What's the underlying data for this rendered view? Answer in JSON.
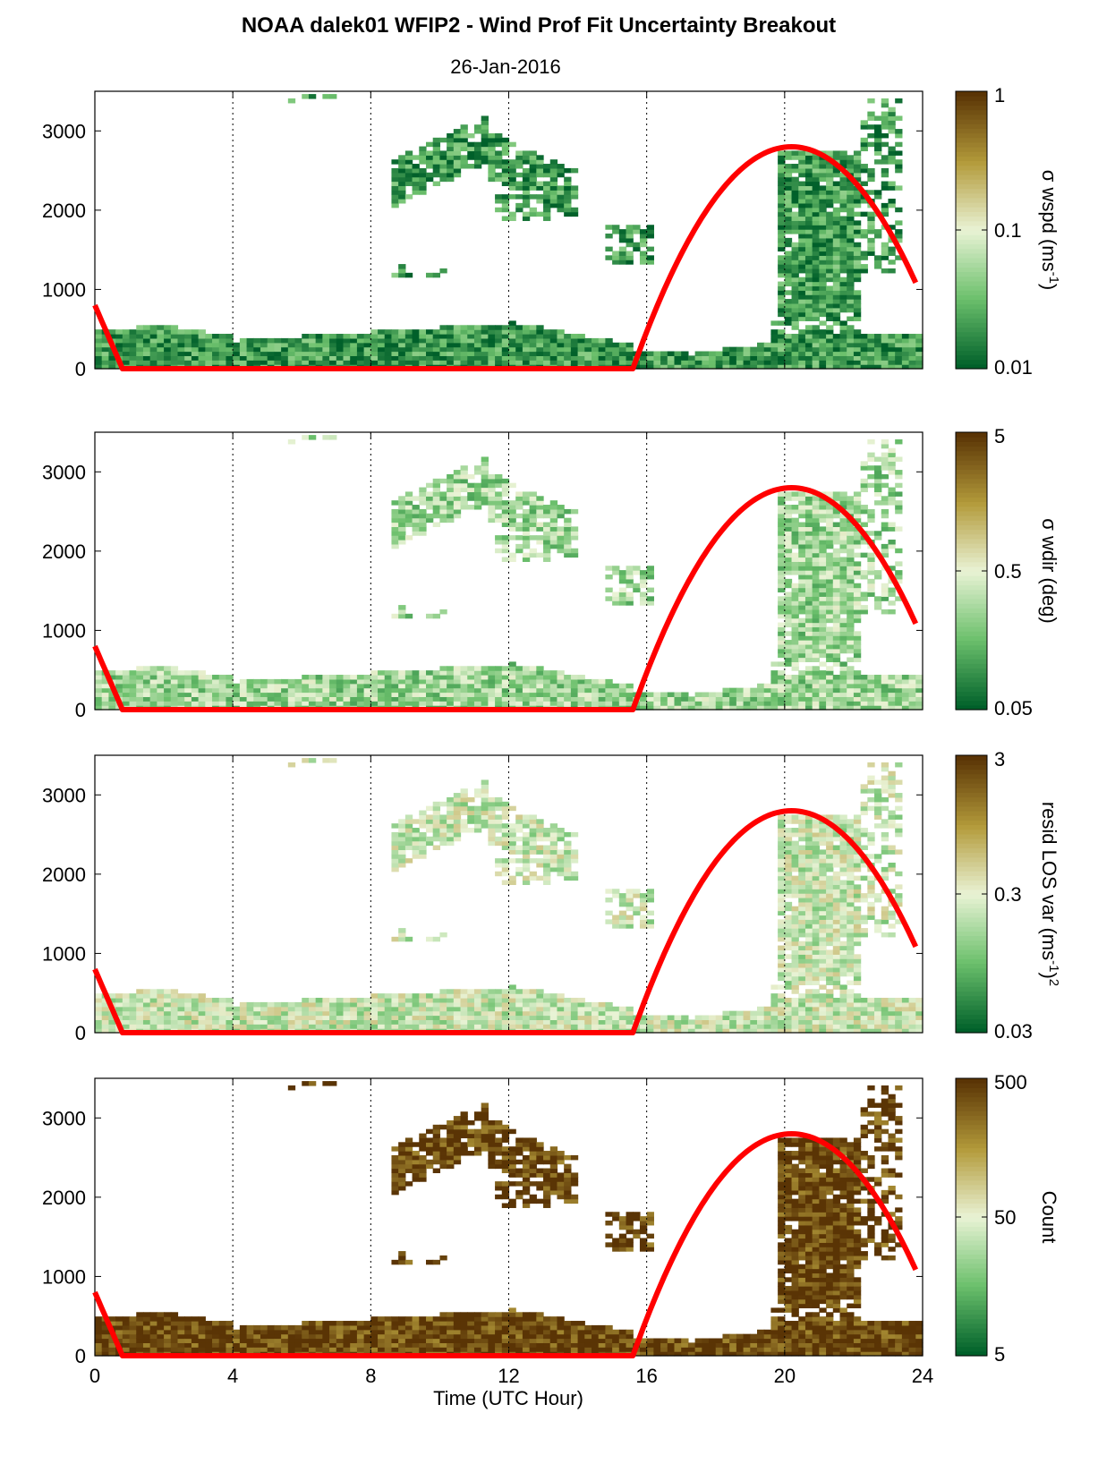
{
  "title": "NOAA dalek01 WFIP2 - Wind Prof Fit Uncertainty Breakout",
  "subtitle": "26-Jan-2016",
  "xlabel": "Time (UTC Hour)",
  "colors": {
    "low": "#00602a",
    "mid_low": "#6cc06c",
    "pale": "#e9f3d5",
    "mid_high": "#b39a3a",
    "high": "#5a3405",
    "sun_curve": "#ff0000"
  },
  "chart_data": [
    {
      "type": "heatmap",
      "name": "wspd",
      "colorbar_label": "σ wspd (ms",
      "colorbar_label_sup": "-1",
      "colorbar_label_end": ")",
      "colorbar_scale": "log",
      "colorbar_ticks": [
        "1",
        "0.1",
        "0.01"
      ],
      "xlim": [
        0,
        24
      ],
      "ylim": [
        0,
        3500
      ],
      "xticks": [
        0,
        4,
        8,
        12,
        16,
        20,
        24
      ],
      "yticks": [
        0,
        1000,
        2000,
        3000
      ],
      "grid": "vertical dotted",
      "dominant_level": 0.15,
      "sun_elevation_curve": [
        [
          0,
          800
        ],
        [
          0.8,
          0
        ],
        [
          15.6,
          0
        ],
        [
          20.2,
          2800
        ],
        [
          23.9,
          1080
        ]
      ]
    },
    {
      "type": "heatmap",
      "name": "wdir",
      "colorbar_label": "σ wdir (deg)",
      "colorbar_scale": "log",
      "colorbar_ticks": [
        "5",
        "0.5",
        "0.05"
      ],
      "xlim": [
        0,
        24
      ],
      "ylim": [
        0,
        3500
      ],
      "xticks": [
        0,
        4,
        8,
        12,
        16,
        20,
        24
      ],
      "yticks": [
        0,
        1000,
        2000,
        3000
      ],
      "grid": "vertical dotted",
      "dominant_level": 0.35,
      "sun_elevation_curve": [
        [
          0,
          800
        ],
        [
          0.8,
          0
        ],
        [
          15.6,
          0
        ],
        [
          20.2,
          2800
        ],
        [
          23.9,
          1080
        ]
      ]
    },
    {
      "type": "heatmap",
      "name": "resid",
      "colorbar_label": "resid LOS var (ms",
      "colorbar_label_sup": "-1",
      "colorbar_label_end": ")",
      "colorbar_label_sup2": "2",
      "colorbar_scale": "log",
      "colorbar_ticks": [
        "3",
        "0.3",
        "0.03"
      ],
      "xlim": [
        0,
        24
      ],
      "ylim": [
        0,
        3500
      ],
      "xticks": [
        0,
        4,
        8,
        12,
        16,
        20,
        24
      ],
      "yticks": [
        0,
        1000,
        2000,
        3000
      ],
      "grid": "vertical dotted",
      "dominant_level": 0.45,
      "sun_elevation_curve": [
        [
          0,
          800
        ],
        [
          0.8,
          0
        ],
        [
          15.6,
          0
        ],
        [
          20.2,
          2800
        ],
        [
          23.9,
          1080
        ]
      ]
    },
    {
      "type": "heatmap",
      "name": "count",
      "colorbar_label": "Count",
      "colorbar_scale": "log",
      "colorbar_ticks": [
        "500",
        "50",
        "5"
      ],
      "xlim": [
        0,
        24
      ],
      "ylim": [
        0,
        3500
      ],
      "xticks": [
        0,
        4,
        8,
        12,
        16,
        20,
        24
      ],
      "yticks": [
        0,
        1000,
        2000,
        3000
      ],
      "grid": "vertical dotted",
      "dominant_level": 0.97,
      "sun_elevation_curve": [
        [
          0,
          800
        ],
        [
          0.8,
          0
        ],
        [
          15.6,
          0
        ],
        [
          20.2,
          2800
        ],
        [
          23.9,
          1080
        ]
      ]
    }
  ],
  "x_tick_labels": [
    "0",
    "4",
    "8",
    "12",
    "16",
    "20",
    "24"
  ],
  "y_tick_labels": [
    "0",
    "1000",
    "2000",
    "3000"
  ]
}
